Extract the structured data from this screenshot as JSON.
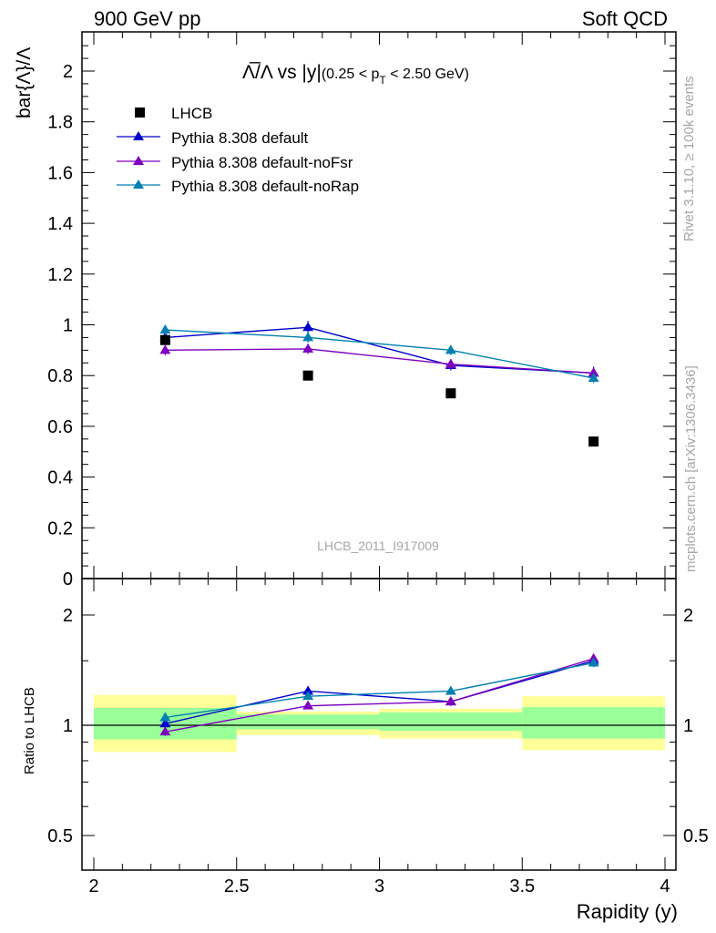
{
  "header": {
    "left": "900 GeV pp",
    "right": "Soft QCD"
  },
  "side_labels": {
    "rivet": "Rivet 3.1.10, ≥ 100k events",
    "source": "mcplots.cern.ch [arXiv:1306.3436]"
  },
  "watermark": "LHCB_2011_I917009",
  "chart_data": [
    {
      "type": "scatter",
      "title": {
        "main": "Λ̅/Λ vs |y|",
        "cut": "(0.25 < p",
        "cut_sub": "T",
        "cut_end": " < 2.50 GeV)"
      },
      "ylabel": "bar{Λ}/Λ",
      "xlim": [
        2,
        4
      ],
      "ylim": [
        0,
        2.15
      ],
      "x_ticks": [
        2,
        2.5,
        3,
        3.5,
        4
      ],
      "y_ticks": [
        {
          "v": 0,
          "label": "0"
        },
        {
          "v": 0.2,
          "label": "0.2"
        },
        {
          "v": 0.4,
          "label": "0.4"
        },
        {
          "v": 0.6,
          "label": "0.6"
        },
        {
          "v": 0.8,
          "label": "0.8"
        },
        {
          "v": 1.0,
          "label": "1"
        },
        {
          "v": 1.2,
          "label": "1.2"
        },
        {
          "v": 1.4,
          "label": "1.4"
        },
        {
          "v": 1.6,
          "label": "1.6"
        },
        {
          "v": 1.8,
          "label": "1.8"
        },
        {
          "v": 2.0,
          "label": "2"
        }
      ],
      "x": [
        2.25,
        2.75,
        3.25,
        3.75
      ],
      "data": {
        "name": "LHCB",
        "values": [
          0.94,
          0.8,
          0.73,
          0.54
        ],
        "color": "#000000"
      },
      "series": [
        {
          "name": "Pythia 8.308 default",
          "color": "#0000cc",
          "values": [
            0.95,
            0.99,
            0.84,
            0.81
          ],
          "errors": [
            0.02,
            0.025,
            0.02,
            0.025
          ]
        },
        {
          "name": "Pythia 8.308 default-noFsr",
          "color": "#7f00bf",
          "values": [
            0.9,
            0.905,
            0.845,
            0.81
          ],
          "errors": [
            0.02,
            0.02,
            0.02,
            0.02
          ]
        },
        {
          "name": "Pythia 8.308 default-noRap",
          "color": "#0080b0",
          "values": [
            0.98,
            0.95,
            0.9,
            0.79
          ],
          "errors": [
            0.02,
            0.02,
            0.02,
            0.02
          ]
        }
      ],
      "legend_position": "top-left"
    },
    {
      "type": "scatter",
      "ylabel": "Ratio to LHCB",
      "xlabel": "Rapidity (y)",
      "scale": "log",
      "xlim": [
        2,
        4
      ],
      "ylim": [
        0.4,
        2.3
      ],
      "x_ticks": [
        2,
        2.5,
        3,
        3.5,
        4
      ],
      "y_ticks": [
        {
          "v": 0.5,
          "label": "0.5"
        },
        {
          "v": 1,
          "label": "1"
        },
        {
          "v": 2,
          "label": "2"
        }
      ],
      "x": [
        2.25,
        2.75,
        3.25,
        3.75
      ],
      "bins": [
        [
          2.0,
          2.5
        ],
        [
          2.5,
          3.0
        ],
        [
          3.0,
          3.5
        ],
        [
          3.5,
          4.0
        ]
      ],
      "band_1sigma": [
        [
          0.915,
          1.115
        ],
        [
          0.975,
          1.07
        ],
        [
          0.965,
          1.085
        ],
        [
          0.92,
          1.12
        ]
      ],
      "band_2sigma": [
        [
          0.845,
          1.21
        ],
        [
          0.94,
          1.09
        ],
        [
          0.92,
          1.11
        ],
        [
          0.855,
          1.2
        ]
      ],
      "series": [
        {
          "name": "Pythia 8.308 default",
          "color": "#0000cc",
          "values": [
            1.01,
            1.24,
            1.16,
            1.5
          ],
          "errors": [
            0.025,
            0.03,
            0.03,
            0.04
          ]
        },
        {
          "name": "Pythia 8.308 default-noFsr",
          "color": "#7f00bf",
          "values": [
            0.96,
            1.13,
            1.16,
            1.52
          ],
          "errors": [
            0.025,
            0.025,
            0.03,
            0.04
          ]
        },
        {
          "name": "Pythia 8.308 default-noRap",
          "color": "#0080b0",
          "values": [
            1.05,
            1.2,
            1.24,
            1.48
          ],
          "errors": [
            0.025,
            0.025,
            0.03,
            0.04
          ]
        }
      ]
    }
  ]
}
